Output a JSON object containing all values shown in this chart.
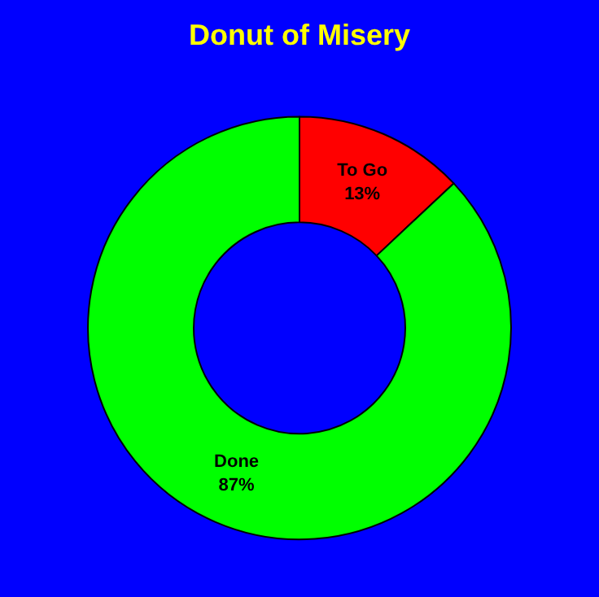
{
  "chart_data": {
    "type": "donut",
    "title": "Donut of Misery",
    "categories": [
      "To Go",
      "Done"
    ],
    "values": [
      13,
      87
    ],
    "value_labels": [
      "13%",
      "87%"
    ],
    "colors": [
      "#ff0000",
      "#00ff00"
    ],
    "legend": false
  }
}
